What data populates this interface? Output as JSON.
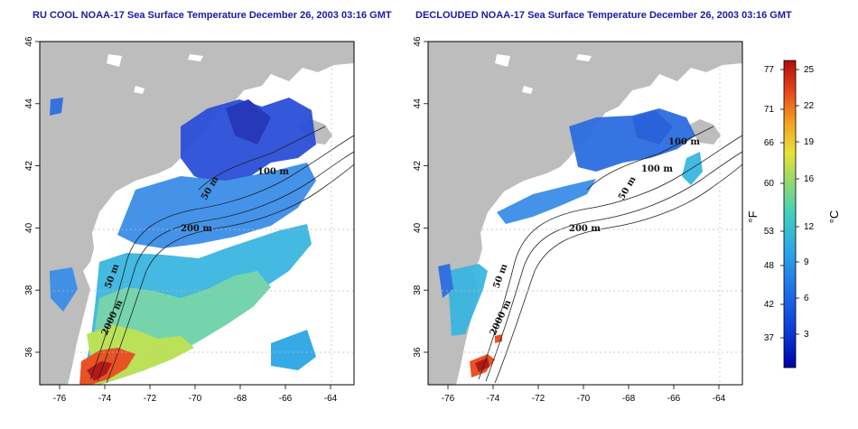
{
  "left_panel": {
    "title": "RU COOL NOAA-17 Sea Surface Temperature December 26, 2003 03:16 GMT",
    "contour_labels": [
      "50 m",
      "100 m",
      "200 m",
      "50 m",
      "2000 m"
    ]
  },
  "right_panel": {
    "title": "DECLOUDED NOAA-17 Sea Surface Temperature December 26, 2003 03:16 GMT",
    "contour_labels": [
      "100 m",
      "100 m",
      "50 m",
      "200 m",
      "50 m",
      "2000 m"
    ]
  },
  "axes": {
    "x_ticks": [
      "-76",
      "-74",
      "-72",
      "-70",
      "-68",
      "-66",
      "-64"
    ],
    "y_ticks": [
      "36",
      "38",
      "40",
      "42",
      "44",
      "46"
    ]
  },
  "colorbar": {
    "f_unit": "°F",
    "c_unit": "°C",
    "f_ticks": [
      "77",
      "71",
      "66",
      "60",
      "53",
      "48",
      "42",
      "37"
    ],
    "c_ticks": [
      "25",
      "22",
      "19",
      "16",
      "12",
      "9",
      "6",
      "3"
    ],
    "colors": [
      "#0000a8",
      "#0a3cd6",
      "#1f6fe8",
      "#2ca6e6",
      "#3fd0c0",
      "#8fd870",
      "#e8e23a",
      "#f2a020",
      "#e6461a",
      "#b00d0d"
    ]
  },
  "land_color": "#bdbdbd",
  "title_color": "#1a1aa6"
}
